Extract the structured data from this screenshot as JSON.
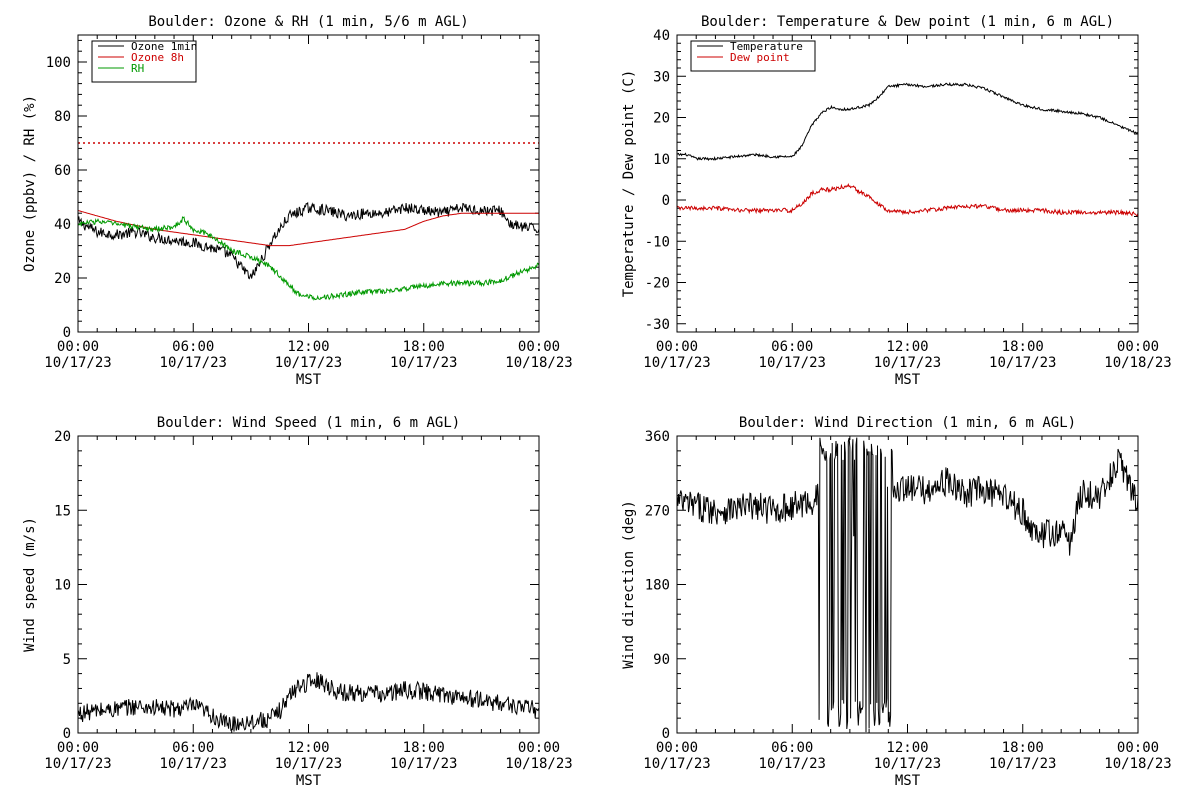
{
  "figure": {
    "background": "#ffffff"
  },
  "chart_data": [
    {
      "id": "ozone-rh",
      "type": "line",
      "title": "Boulder: Ozone & RH (1 min, 5/6 m AGL)",
      "xlabel": "MST",
      "ylabel": "Ozone (ppbv) / RH (%)",
      "xlim_hours": [
        0,
        24
      ],
      "ylim": [
        0,
        110
      ],
      "yticks": [
        0,
        20,
        40,
        60,
        80,
        100
      ],
      "xticks": [
        {
          "time": "00:00",
          "date": "10/17/23"
        },
        {
          "time": "06:00",
          "date": "10/17/23"
        },
        {
          "time": "12:00",
          "date": "10/17/23"
        },
        {
          "time": "18:00",
          "date": "10/17/23"
        },
        {
          "time": "00:00",
          "date": "10/18/23"
        }
      ],
      "reference_line": {
        "y": 70,
        "color": "#cc0000",
        "style": "dotted"
      },
      "legend": "top-left",
      "series": [
        {
          "name": "Ozone 1min",
          "color": "#000000",
          "noise": 2.0,
          "x": [
            0,
            0.5,
            1,
            2,
            3,
            4,
            5,
            6,
            7,
            7.5,
            8,
            8.5,
            9,
            9.5,
            9.8,
            10,
            10.5,
            11,
            12,
            13,
            14,
            15,
            16,
            16.5,
            17,
            18,
            19,
            20,
            21,
            22,
            22.5,
            23,
            24
          ],
          "values": [
            41,
            39,
            37,
            36,
            37,
            35,
            34,
            33,
            31,
            30,
            28,
            24,
            20,
            26,
            30,
            33,
            38,
            43,
            46,
            45,
            43,
            44,
            44,
            45,
            46,
            45,
            44,
            46,
            45,
            45,
            40,
            39,
            38
          ]
        },
        {
          "name": "Ozone 8h",
          "color": "#cc0000",
          "noise": 0,
          "x": [
            0,
            2,
            4,
            6,
            8,
            9,
            10,
            11,
            12,
            14,
            16,
            17,
            18,
            19,
            20,
            22,
            24
          ],
          "values": [
            45,
            41,
            38,
            36,
            34,
            33,
            32,
            32,
            33,
            35,
            37,
            38,
            41,
            43,
            44,
            44,
            44
          ]
        },
        {
          "name": "RH",
          "color": "#009900",
          "noise": 1.0,
          "x": [
            0,
            1,
            2,
            3,
            4,
            5,
            5.5,
            6,
            6.5,
            7,
            7.5,
            8,
            8.5,
            9,
            9.5,
            10,
            10.5,
            11,
            11.5,
            12,
            13,
            14,
            15,
            16,
            17,
            18,
            19,
            20,
            21,
            22,
            23,
            24
          ],
          "values": [
            40,
            41,
            40,
            39,
            38,
            39,
            42,
            38,
            37,
            35,
            33,
            30,
            29,
            28,
            26,
            24,
            21,
            17,
            14,
            13,
            13,
            14,
            15,
            15,
            16,
            17,
            18,
            18,
            18,
            19,
            22,
            25
          ]
        }
      ]
    },
    {
      "id": "temp-dew",
      "type": "line",
      "title": "Boulder: Temperature & Dew point (1 min, 6 m AGL)",
      "xlabel": "MST",
      "ylabel": "Temperature / Dew point (C)",
      "xlim_hours": [
        0,
        24
      ],
      "ylim": [
        -32,
        40
      ],
      "yticks": [
        -30,
        -20,
        -10,
        0,
        10,
        20,
        30,
        40
      ],
      "xticks": [
        {
          "time": "00:00",
          "date": "10/17/23"
        },
        {
          "time": "06:00",
          "date": "10/17/23"
        },
        {
          "time": "12:00",
          "date": "10/17/23"
        },
        {
          "time": "18:00",
          "date": "10/17/23"
        },
        {
          "time": "00:00",
          "date": "10/18/23"
        }
      ],
      "legend": "top-left",
      "series": [
        {
          "name": "Temperature",
          "color": "#000000",
          "noise": 0.3,
          "x": [
            0,
            0.5,
            1,
            2,
            3,
            4,
            5,
            6,
            6.5,
            7,
            7.5,
            8,
            8.5,
            9,
            9.5,
            10,
            10.5,
            11,
            12,
            13,
            14,
            15,
            16,
            17,
            18,
            19,
            20,
            21,
            22,
            23,
            24
          ],
          "values": [
            11,
            11,
            10,
            10,
            10.5,
            11,
            10.5,
            10.5,
            13,
            18,
            21,
            22.5,
            22,
            22,
            22.5,
            23,
            25,
            27.5,
            28,
            27.5,
            28,
            28,
            27,
            25,
            23,
            22,
            21.5,
            21,
            20,
            18,
            16
          ]
        },
        {
          "name": "Dew point",
          "color": "#cc0000",
          "noise": 0.5,
          "x": [
            0,
            1,
            2,
            3,
            4,
            5,
            6,
            6.5,
            7,
            7.5,
            8,
            8.5,
            9,
            9.5,
            10,
            10.5,
            11,
            12,
            13,
            14,
            15,
            16,
            17,
            18,
            19,
            20,
            21,
            22,
            23,
            24
          ],
          "values": [
            -2,
            -2,
            -2,
            -2.5,
            -2.5,
            -2.5,
            -2.5,
            -1,
            1.5,
            2.5,
            2.5,
            3,
            3.5,
            2,
            1,
            -1,
            -2.5,
            -3,
            -2.5,
            -2,
            -1.5,
            -1.5,
            -2.5,
            -2.5,
            -2.5,
            -3,
            -3,
            -3,
            -3,
            -3.5
          ]
        }
      ]
    },
    {
      "id": "wind-speed",
      "type": "line",
      "title": "Boulder: Wind Speed (1 min, 6 m AGL)",
      "xlabel": "MST",
      "ylabel": "Wind speed (m/s)",
      "xlim_hours": [
        0,
        24
      ],
      "ylim": [
        0,
        20
      ],
      "yticks": [
        0,
        5,
        10,
        15,
        20
      ],
      "xticks": [
        {
          "time": "00:00",
          "date": "10/17/23"
        },
        {
          "time": "06:00",
          "date": "10/17/23"
        },
        {
          "time": "12:00",
          "date": "10/17/23"
        },
        {
          "time": "18:00",
          "date": "10/17/23"
        },
        {
          "time": "00:00",
          "date": "10/18/23"
        }
      ],
      "series": [
        {
          "color": "#000000",
          "noise": 0.6,
          "floor": 0,
          "x": [
            0,
            1,
            2,
            3,
            4,
            5,
            6,
            6.5,
            7,
            7.5,
            8,
            9,
            10,
            10.5,
            11,
            11.5,
            12,
            12.5,
            13,
            13.5,
            14,
            15,
            16,
            17,
            18,
            19,
            20,
            21,
            22,
            23,
            24
          ],
          "values": [
            1.3,
            1.5,
            1.6,
            1.8,
            1.7,
            1.6,
            1.8,
            1.5,
            1.2,
            0.7,
            0.6,
            0.8,
            0.9,
            1.5,
            2.5,
            3.2,
            3.4,
            3.6,
            3.2,
            2.8,
            2.7,
            2.7,
            2.6,
            2.9,
            2.8,
            2.6,
            2.4,
            2.2,
            2.0,
            1.8,
            1.5
          ]
        }
      ]
    },
    {
      "id": "wind-direction",
      "type": "line",
      "title": "Boulder: Wind Direction (1 min, 6 m AGL)",
      "xlabel": "MST",
      "ylabel": "Wind direction (deg)",
      "xlim_hours": [
        0,
        24
      ],
      "ylim": [
        0,
        360
      ],
      "yticks": [
        0,
        90,
        180,
        270,
        360
      ],
      "xticks": [
        {
          "time": "00:00",
          "date": "10/17/23"
        },
        {
          "time": "06:00",
          "date": "10/17/23"
        },
        {
          "time": "12:00",
          "date": "10/17/23"
        },
        {
          "time": "18:00",
          "date": "10/17/23"
        },
        {
          "time": "00:00",
          "date": "10/18/23"
        }
      ],
      "series": [
        {
          "color": "#000000",
          "noise": 18,
          "floor": 0,
          "ceil": 360,
          "wrap_band": [
            7.4,
            11.2
          ],
          "x": [
            0,
            1,
            2,
            3,
            4,
            5,
            6,
            7,
            7.4,
            11.2,
            12,
            13,
            14,
            15,
            16,
            17,
            18,
            18.5,
            19,
            20,
            20.5,
            21,
            22,
            22.5,
            23,
            24
          ],
          "values": [
            280,
            275,
            270,
            272,
            275,
            270,
            275,
            280,
            290,
            300,
            295,
            295,
            305,
            290,
            295,
            285,
            270,
            240,
            240,
            245,
            230,
            290,
            285,
            310,
            330,
            280
          ]
        }
      ]
    }
  ]
}
